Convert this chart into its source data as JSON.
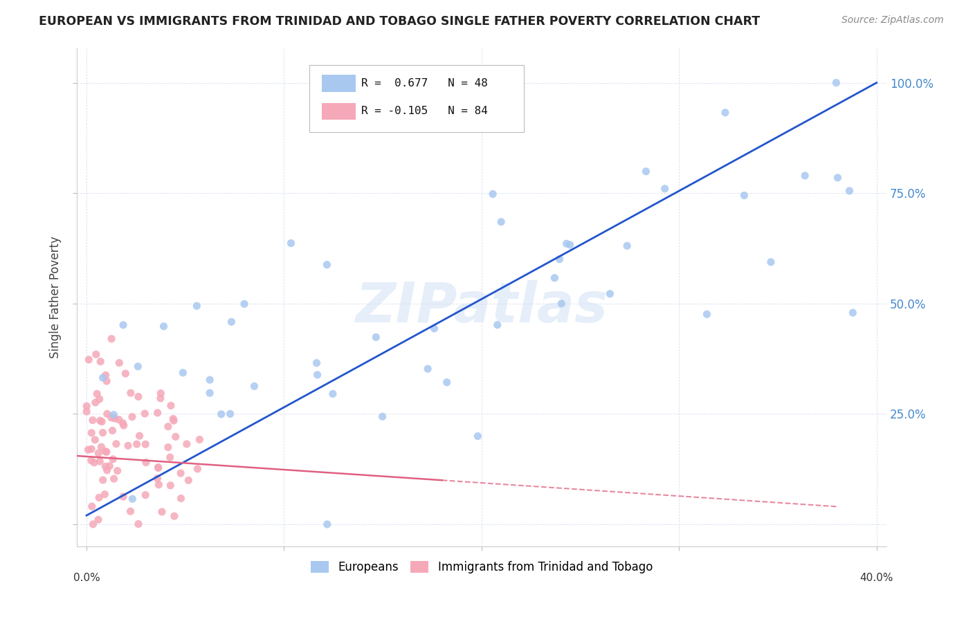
{
  "title": "EUROPEAN VS IMMIGRANTS FROM TRINIDAD AND TOBAGO SINGLE FATHER POVERTY CORRELATION CHART",
  "source": "Source: ZipAtlas.com",
  "ylabel": "Single Father Poverty",
  "right_yticklabels": [
    "",
    "25.0%",
    "50.0%",
    "75.0%",
    "100.0%"
  ],
  "legend_blue_r": "0.677",
  "legend_blue_n": "48",
  "legend_pink_r": "-0.105",
  "legend_pink_n": "84",
  "legend_blue_label": "Europeans",
  "legend_pink_label": "Immigrants from Trinidad and Tobago",
  "blue_color": "#a8c8f0",
  "pink_color": "#f5a8b8",
  "blue_line_color": "#2255cc",
  "pink_line_color": "#e06080",
  "watermark": "ZIPatlas",
  "blue_R": 0.677,
  "pink_R": -0.105,
  "blue_N": 48,
  "pink_N": 84,
  "xlim": [
    -0.005,
    0.405
  ],
  "ylim": [
    -0.05,
    1.08
  ],
  "blue_line_x0": 0.0,
  "blue_line_y0": 0.02,
  "blue_line_x1": 0.4,
  "blue_line_y1": 1.0,
  "pink_line_x0": -0.005,
  "pink_line_y0": 0.155,
  "pink_line_x1": 0.38,
  "pink_line_y1": 0.04,
  "blue_seed": 42,
  "pink_seed": 7
}
